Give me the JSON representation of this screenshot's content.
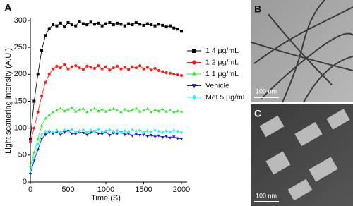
{
  "chart_data": {
    "type": "line",
    "panel_label": "A",
    "y_label": "Light scattering intensity (A.U.)",
    "x_label": "Time (S)",
    "xlim": [
      0,
      2000
    ],
    "xticks": [
      0,
      500,
      1000,
      1500,
      2000
    ],
    "ylim": [
      0,
      300
    ],
    "yticks": [
      0,
      50,
      100,
      150,
      200,
      250,
      300
    ],
    "x": [
      0,
      50,
      100,
      150,
      200,
      250,
      300,
      350,
      400,
      450,
      500,
      550,
      600,
      650,
      700,
      750,
      800,
      850,
      900,
      950,
      1000,
      1050,
      1100,
      1150,
      1200,
      1250,
      1300,
      1350,
      1400,
      1450,
      1500,
      1550,
      1600,
      1650,
      1700,
      1750,
      1800,
      1850,
      1900,
      1950,
      2000
    ],
    "series": [
      {
        "name": "1 4 μg/mL",
        "color": "#000000",
        "marker": "square",
        "values": [
          80,
          150,
          200,
          245,
          272,
          285,
          292,
          290,
          295,
          288,
          296,
          292,
          290,
          298,
          294,
          292,
          297,
          293,
          295,
          290,
          294,
          296,
          292,
          295,
          293,
          290,
          294,
          292,
          296,
          293,
          291,
          294,
          292,
          290,
          293,
          291,
          288,
          290,
          286,
          284,
          280
        ]
      },
      {
        "name": "1 2 μg/mL",
        "color": "#ff1a1a",
        "marker": "circle",
        "values": [
          75,
          100,
          130,
          160,
          185,
          200,
          210,
          215,
          212,
          218,
          210,
          214,
          216,
          212,
          209,
          215,
          213,
          211,
          216,
          210,
          214,
          208,
          212,
          215,
          210,
          213,
          209,
          214,
          212,
          216,
          210,
          213,
          208,
          211,
          207,
          205,
          203,
          202,
          200,
          199,
          198
        ]
      },
      {
        "name": "1 1 μg/mL",
        "color": "#33e633",
        "marker": "triangle-up",
        "values": [
          30,
          55,
          80,
          105,
          118,
          125,
          130,
          133,
          137,
          132,
          135,
          138,
          131,
          134,
          136,
          130,
          133,
          137,
          132,
          135,
          131,
          134,
          136,
          133,
          130,
          135,
          132,
          134,
          137,
          131,
          133,
          136,
          130,
          134,
          132,
          135,
          131,
          133,
          130,
          132,
          131
        ]
      },
      {
        "name": "Vehicle",
        "color": "#1a1acc",
        "marker": "triangle-down",
        "values": [
          15,
          40,
          60,
          80,
          88,
          92,
          90,
          93,
          88,
          92,
          95,
          90,
          89,
          93,
          91,
          88,
          92,
          94,
          90,
          89,
          93,
          87,
          91,
          90,
          92,
          88,
          90,
          86,
          89,
          87,
          88,
          85,
          87,
          84,
          86,
          83,
          85,
          82,
          84,
          81,
          80
        ]
      },
      {
        "name": "Met 5 μg/mL",
        "color": "#33f0f0",
        "marker": "diamond",
        "values": [
          20,
          45,
          70,
          88,
          94,
          95,
          93,
          96,
          92,
          97,
          94,
          98,
          93,
          95,
          97,
          92,
          96,
          94,
          98,
          93,
          95,
          97,
          94,
          96,
          92,
          95,
          93,
          97,
          94,
          96,
          92,
          95,
          93,
          96,
          94,
          92,
          95,
          93,
          96,
          94,
          92
        ]
      }
    ]
  },
  "images": [
    {
      "label": "B",
      "scale_bar": "100 nm"
    },
    {
      "label": "C",
      "scale_bar": "100 nm"
    }
  ]
}
